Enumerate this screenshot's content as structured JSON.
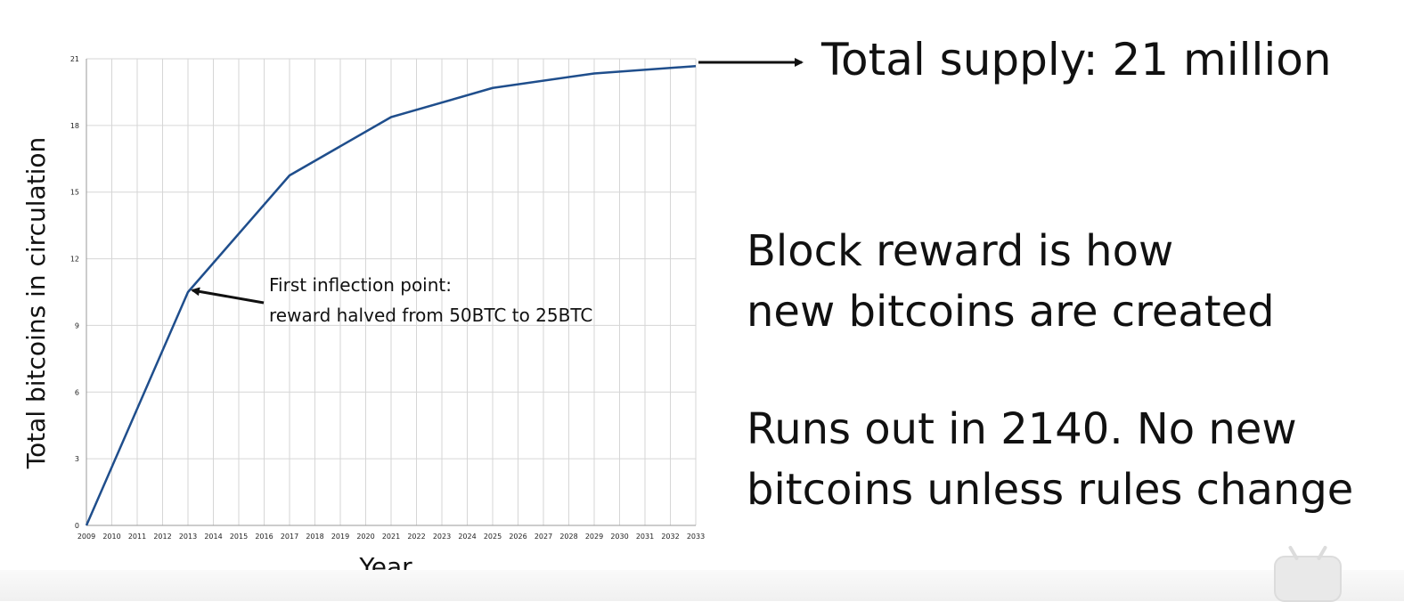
{
  "slide": {
    "total_supply": "Total supply: 21 million",
    "block_reward_line1": "Block reward is how",
    "block_reward_line2": "new bitcoins are created",
    "runs_out_line1": "Runs out in 2140. No new",
    "runs_out_line2": "bitcoins unless rules change"
  },
  "chart_data": {
    "type": "line",
    "title": "",
    "xlabel": "Year",
    "ylabel": "Total bitcoins in circulation",
    "x_ticks": [
      "2009",
      "2010",
      "2011",
      "2012",
      "2013",
      "2014",
      "2015",
      "2016",
      "2017",
      "2018",
      "2019",
      "2020",
      "2021",
      "2022",
      "2023",
      "2024",
      "2025",
      "2026",
      "2027",
      "2028",
      "2029",
      "2030",
      "2031",
      "2032",
      "2033"
    ],
    "y_ticks": [
      "0",
      "3",
      "6",
      "9",
      "12",
      "15",
      "18",
      "21"
    ],
    "xlim": [
      2009,
      2033
    ],
    "ylim": [
      0,
      21
    ],
    "grid": true,
    "line_color": "#1f4e8c",
    "series": [
      {
        "x": [
          2009,
          2013,
          2017,
          2021,
          2025,
          2029,
          2033
        ],
        "values": [
          0,
          10.5,
          15.75,
          18.375,
          19.6875,
          20.34,
          20.67
        ]
      }
    ],
    "annotations": [
      {
        "x": 2013,
        "y": 10.5,
        "line1": "First inflection point:",
        "line2": "reward halved from 50BTC to 25BTC"
      }
    ]
  }
}
